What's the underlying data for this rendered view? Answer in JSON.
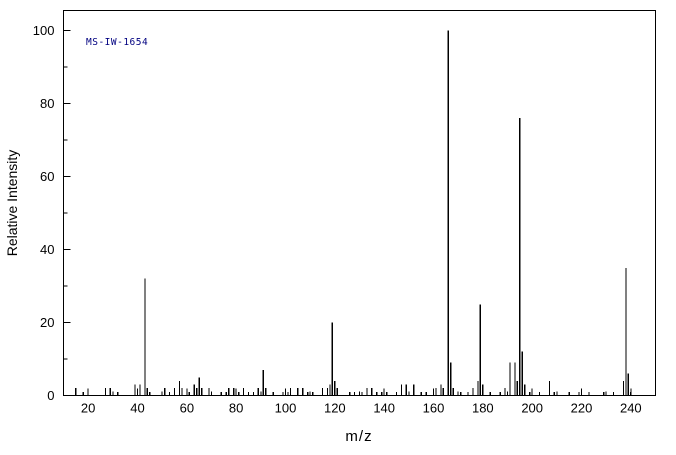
{
  "figure": {
    "spectrum_id": "MS-IW-1654"
  },
  "colors": {
    "background": "#ffffff",
    "axis": "#000000",
    "text": "#000000",
    "spectrum_id_text": "#000080",
    "peak": "#000000"
  },
  "chart_data": {
    "type": "bar",
    "subtype": "mass-spectrum",
    "title": "",
    "spectrum_id": "MS-IW-1654",
    "xlabel": "m/z",
    "ylabel": "Relative Intensity",
    "xlim": [
      10,
      250
    ],
    "ylim": [
      0,
      100
    ],
    "grid": false,
    "legend": "none",
    "x_ticks": [
      20,
      40,
      60,
      80,
      100,
      120,
      140,
      160,
      180,
      200,
      220,
      240
    ],
    "x_minor_step": 10,
    "y_ticks": [
      0,
      20,
      40,
      60,
      80,
      100
    ],
    "y_minor_step": 10,
    "peaks": [
      [
        15,
        2
      ],
      [
        18,
        1
      ],
      [
        27,
        2
      ],
      [
        29,
        2
      ],
      [
        32,
        1
      ],
      [
        39,
        3
      ],
      [
        41,
        3
      ],
      [
        43,
        32
      ],
      [
        44,
        2
      ],
      [
        45,
        1
      ],
      [
        51,
        2
      ],
      [
        53,
        1
      ],
      [
        55,
        2
      ],
      [
        57,
        4
      ],
      [
        58,
        2
      ],
      [
        61,
        1
      ],
      [
        63,
        3
      ],
      [
        64,
        2
      ],
      [
        65,
        5
      ],
      [
        66,
        2
      ],
      [
        69,
        2
      ],
      [
        74,
        1
      ],
      [
        76,
        1
      ],
      [
        77,
        2
      ],
      [
        79,
        2
      ],
      [
        81,
        1
      ],
      [
        83,
        2
      ],
      [
        85,
        1
      ],
      [
        87,
        1
      ],
      [
        89,
        2
      ],
      [
        91,
        7
      ],
      [
        92,
        2
      ],
      [
        95,
        1
      ],
      [
        99,
        1
      ],
      [
        101,
        1
      ],
      [
        102,
        2
      ],
      [
        105,
        2
      ],
      [
        107,
        2
      ],
      [
        109,
        1
      ],
      [
        111,
        1
      ],
      [
        115,
        2
      ],
      [
        117,
        2
      ],
      [
        118,
        3
      ],
      [
        119,
        20
      ],
      [
        120,
        4
      ],
      [
        121,
        2
      ],
      [
        126,
        1
      ],
      [
        128,
        1
      ],
      [
        131,
        1
      ],
      [
        133,
        2
      ],
      [
        135,
        2
      ],
      [
        137,
        1
      ],
      [
        139,
        1
      ],
      [
        141,
        1
      ],
      [
        145,
        1
      ],
      [
        147,
        3
      ],
      [
        149,
        3
      ],
      [
        152,
        3
      ],
      [
        155,
        1
      ],
      [
        157,
        1
      ],
      [
        161,
        2
      ],
      [
        163,
        3
      ],
      [
        164,
        2
      ],
      [
        166,
        100
      ],
      [
        167,
        9
      ],
      [
        168,
        2
      ],
      [
        171,
        1
      ],
      [
        174,
        1
      ],
      [
        176,
        2
      ],
      [
        178,
        4
      ],
      [
        179,
        25
      ],
      [
        180,
        3
      ],
      [
        183,
        1
      ],
      [
        187,
        1
      ],
      [
        189,
        2
      ],
      [
        191,
        9
      ],
      [
        193,
        9
      ],
      [
        194,
        4
      ],
      [
        195,
        76
      ],
      [
        196,
        12
      ],
      [
        197,
        3
      ],
      [
        199,
        1
      ],
      [
        203,
        1
      ],
      [
        207,
        4
      ],
      [
        209,
        1
      ],
      [
        215,
        1
      ],
      [
        219,
        1
      ],
      [
        223,
        1
      ],
      [
        229,
        1
      ],
      [
        233,
        1
      ],
      [
        237,
        4
      ],
      [
        238,
        35
      ],
      [
        239,
        6
      ],
      [
        240,
        1
      ]
    ]
  }
}
